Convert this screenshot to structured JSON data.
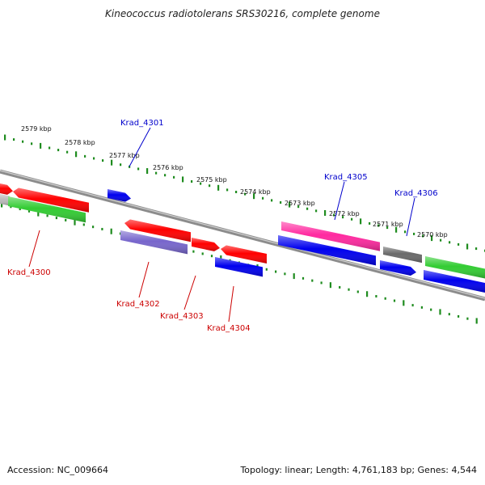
{
  "title": "Kineococcus radiotolerans SRS30216, complete genome",
  "footer": {
    "accession": "Accession: NC_009664",
    "topology": "Topology: linear; Length: 4,761,183 bp; Genes: 4,544"
  },
  "colors": {
    "backbone": "#8c8c8c",
    "ruler": "#1f8c1f",
    "red": "#ff0000",
    "green": "#33cc33",
    "blue": "#0000ee",
    "purple": "#7766cc",
    "magenta": "#ff2aa0",
    "darkgray": "#6a6a6a",
    "lightgray": "#bbbbbb",
    "label_blue": "#0000cc",
    "label_red": "#cc0000"
  },
  "scale": {
    "unit": "kbp",
    "ticks": [
      "2579 kbp",
      "2578 kbp",
      "2577 kbp",
      "2576 kbp",
      "2575 kbp",
      "2574 kbp",
      "2573 kbp",
      "2572 kbp",
      "2571 kbp",
      "2570 kbp"
    ]
  },
  "gene_labels": [
    {
      "name": "Krad_4301",
      "color": "label_blue"
    },
    {
      "name": "Krad_4305",
      "color": "label_blue"
    },
    {
      "name": "Krad_4306",
      "color": "label_blue"
    },
    {
      "name": "Krad_4300",
      "color": "label_red"
    },
    {
      "name": "Krad_4302",
      "color": "label_red"
    },
    {
      "name": "Krad_4303",
      "color": "label_red"
    },
    {
      "name": "Krad_4304",
      "color": "label_red"
    }
  ]
}
